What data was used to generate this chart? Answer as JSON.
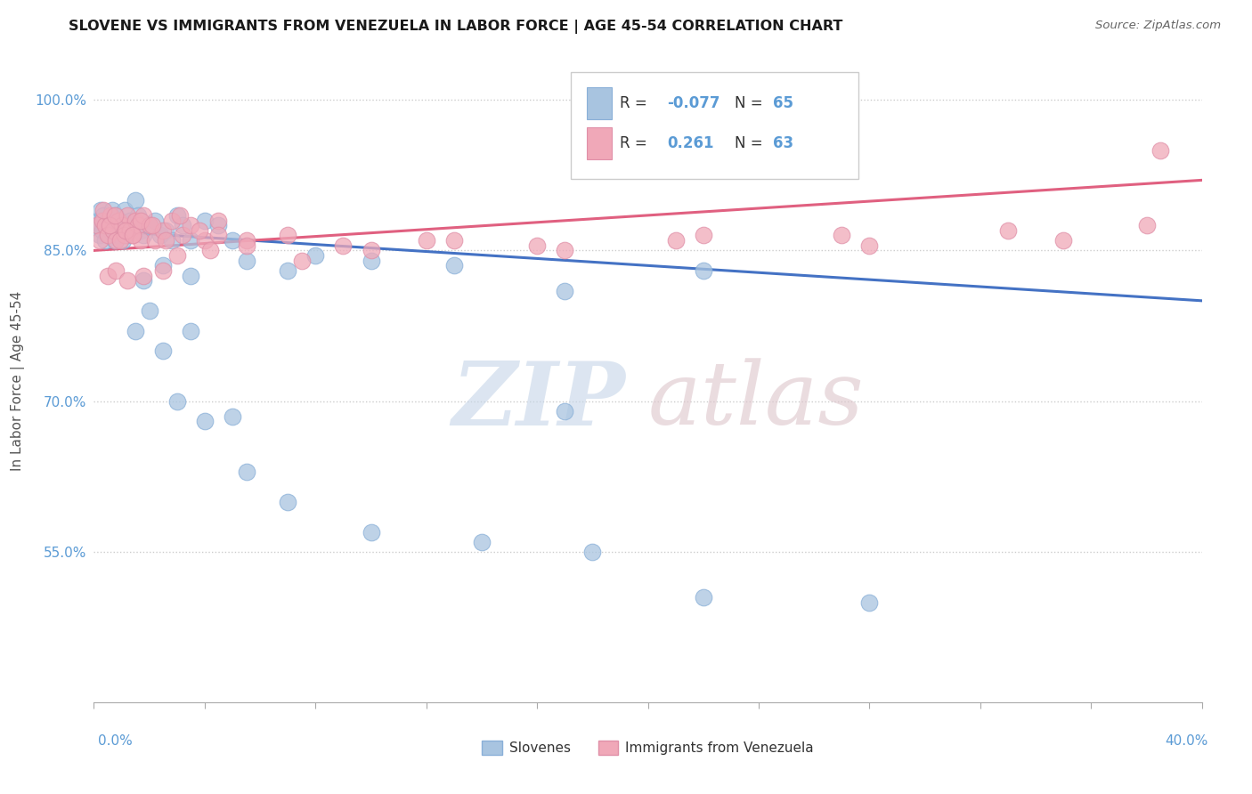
{
  "title": "SLOVENE VS IMMIGRANTS FROM VENEZUELA IN LABOR FORCE | AGE 45-54 CORRELATION CHART",
  "source": "Source: ZipAtlas.com",
  "ylabel": "In Labor Force | Age 45-54",
  "legend_label1": "Slovenes",
  "legend_label2": "Immigrants from Venezuela",
  "R1": -0.077,
  "N1": 65,
  "R2": 0.261,
  "N2": 63,
  "color1": "#a8c4e0",
  "color2": "#f0a8b8",
  "trendline1_color": "#4472c4",
  "trendline2_color": "#e06080",
  "xmin": 0.0,
  "xmax": 40.0,
  "ymin": 40.0,
  "ymax": 104.0,
  "yticks": [
    55.0,
    70.0,
    85.0,
    100.0
  ],
  "blue_x": [
    0.1,
    0.15,
    0.2,
    0.25,
    0.3,
    0.35,
    0.4,
    0.45,
    0.5,
    0.55,
    0.6,
    0.65,
    0.7,
    0.75,
    0.8,
    0.85,
    0.9,
    0.95,
    1.0,
    1.05,
    1.1,
    1.15,
    1.2,
    1.3,
    1.4,
    1.5,
    1.6,
    1.7,
    1.8,
    2.0,
    2.2,
    2.4,
    2.6,
    2.8,
    3.0,
    3.2,
    3.5,
    4.0,
    4.5,
    5.0,
    1.8,
    2.5,
    3.5,
    5.5,
    7.0,
    8.0,
    10.0,
    13.0,
    17.0,
    22.0,
    3.0,
    4.0,
    5.5,
    7.0,
    10.0,
    14.0,
    18.0,
    22.0,
    28.0,
    17.0,
    1.5,
    2.5,
    2.0,
    3.5,
    5.0
  ],
  "blue_y": [
    87.5,
    88.0,
    86.5,
    89.0,
    87.0,
    88.5,
    86.0,
    87.5,
    88.0,
    86.5,
    87.0,
    89.0,
    87.5,
    86.0,
    88.5,
    87.0,
    86.5,
    88.0,
    87.5,
    86.0,
    89.0,
    87.5,
    86.5,
    88.0,
    87.0,
    90.0,
    88.5,
    87.0,
    86.5,
    87.5,
    88.0,
    86.5,
    87.0,
    86.0,
    88.5,
    87.5,
    86.0,
    88.0,
    87.5,
    86.0,
    82.0,
    83.5,
    82.5,
    84.0,
    83.0,
    84.5,
    84.0,
    83.5,
    81.0,
    83.0,
    70.0,
    68.0,
    63.0,
    60.0,
    57.0,
    56.0,
    55.0,
    50.5,
    50.0,
    69.0,
    77.0,
    75.0,
    79.0,
    77.0,
    68.5
  ],
  "pink_x": [
    0.1,
    0.2,
    0.3,
    0.4,
    0.5,
    0.6,
    0.7,
    0.8,
    0.9,
    1.0,
    1.1,
    1.2,
    1.3,
    1.4,
    1.5,
    1.6,
    1.7,
    1.8,
    2.0,
    2.2,
    2.5,
    2.8,
    3.2,
    3.5,
    4.0,
    4.5,
    0.35,
    0.55,
    0.75,
    0.95,
    1.15,
    1.4,
    1.7,
    2.1,
    2.6,
    3.1,
    3.8,
    4.5,
    5.5,
    7.0,
    9.0,
    12.0,
    16.0,
    21.0,
    27.0,
    33.0,
    38.0,
    3.0,
    4.2,
    5.5,
    7.5,
    10.0,
    13.0,
    17.0,
    22.0,
    28.0,
    35.0,
    38.5,
    0.5,
    0.8,
    1.2,
    1.8,
    2.5
  ],
  "pink_y": [
    87.5,
    86.0,
    88.0,
    87.5,
    86.5,
    88.5,
    87.0,
    86.0,
    88.0,
    87.5,
    86.5,
    88.5,
    87.0,
    86.5,
    88.0,
    87.5,
    86.0,
    88.5,
    87.5,
    86.0,
    87.0,
    88.0,
    86.5,
    87.5,
    86.0,
    88.0,
    89.0,
    87.5,
    88.5,
    86.0,
    87.0,
    86.5,
    88.0,
    87.5,
    86.0,
    88.5,
    87.0,
    86.5,
    86.0,
    86.5,
    85.5,
    86.0,
    85.5,
    86.0,
    86.5,
    87.0,
    87.5,
    84.5,
    85.0,
    85.5,
    84.0,
    85.0,
    86.0,
    85.0,
    86.5,
    85.5,
    86.0,
    95.0,
    82.5,
    83.0,
    82.0,
    82.5,
    83.0
  ]
}
